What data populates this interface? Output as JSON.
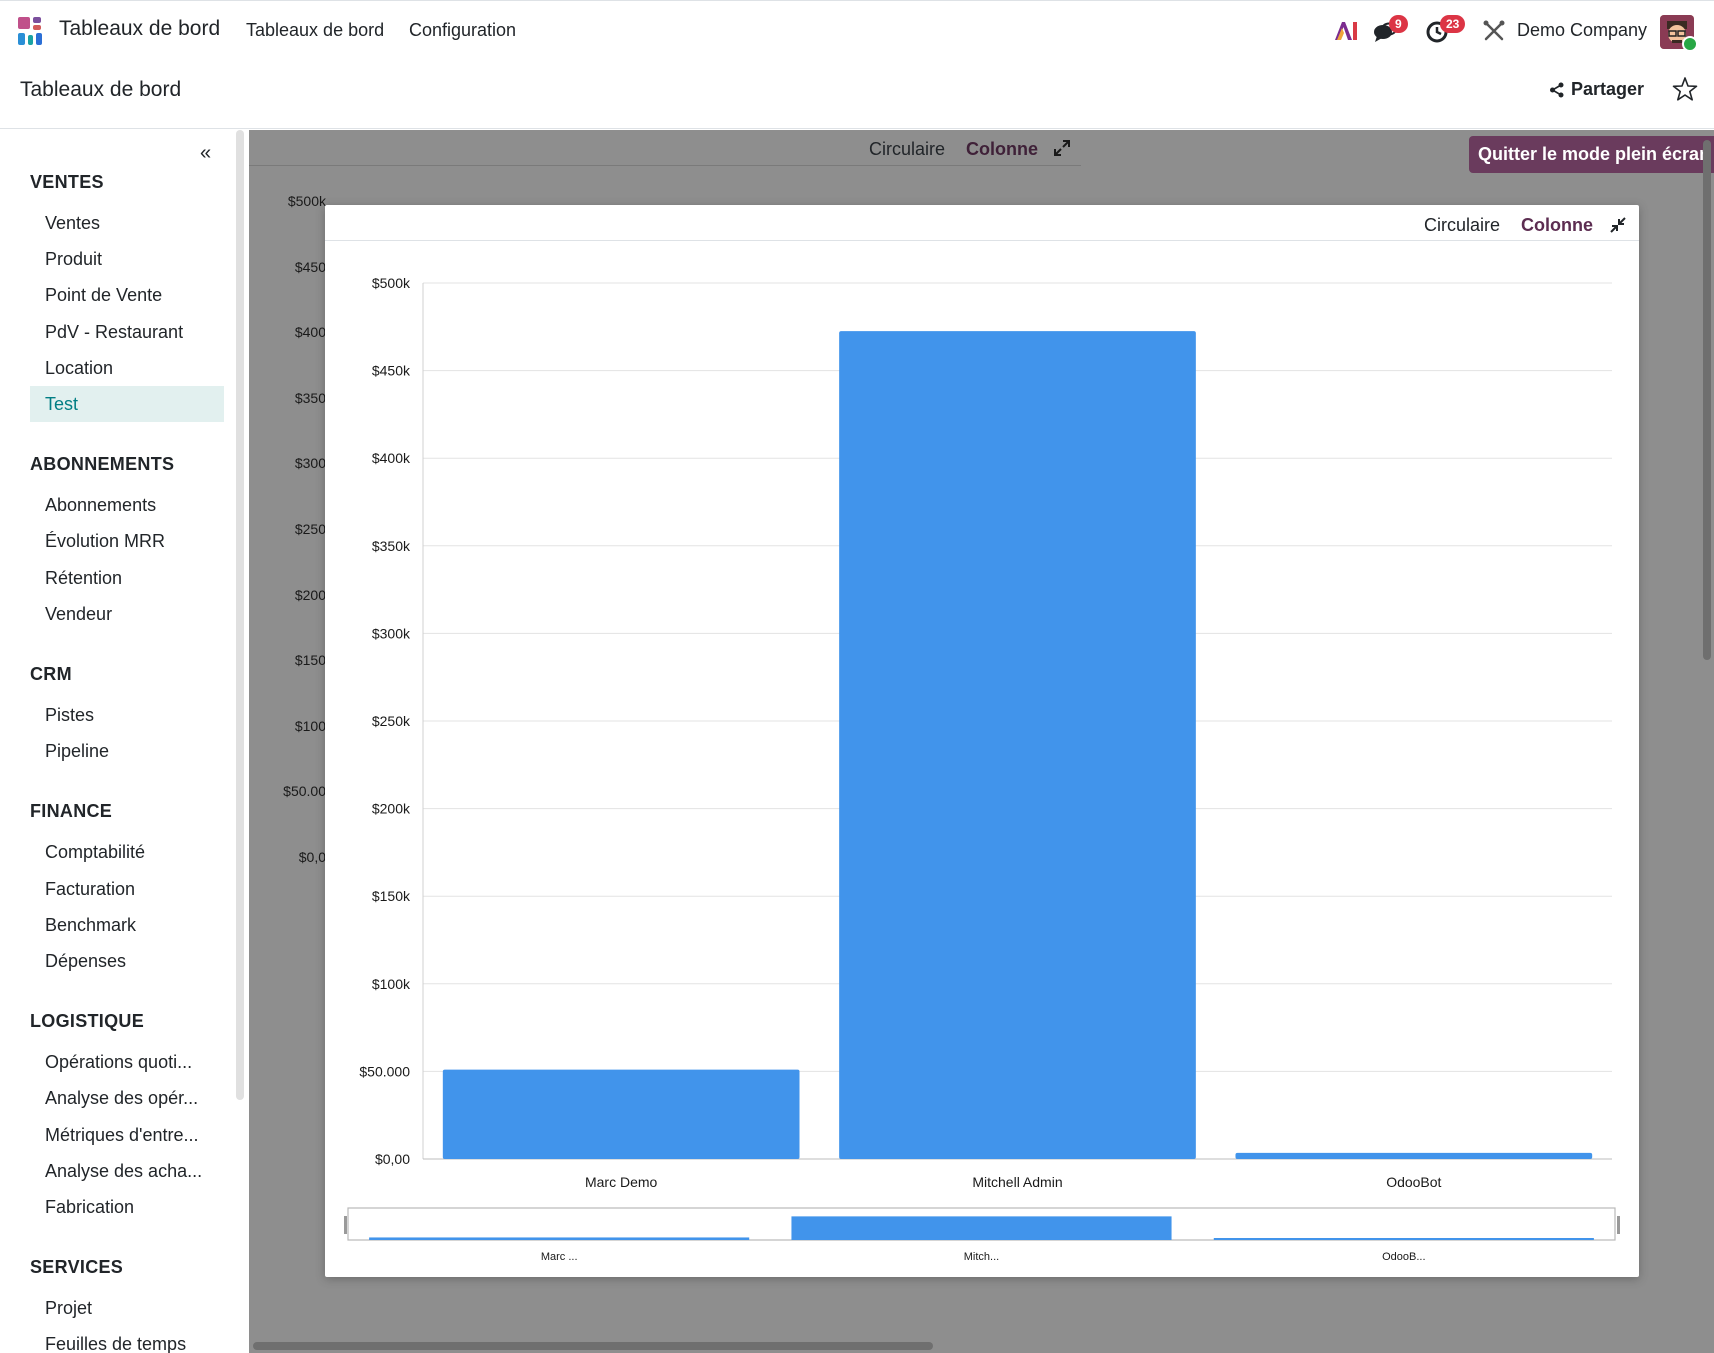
{
  "navbar": {
    "brand": "Tableaux de bord",
    "menu": [
      "Tableaux de bord",
      "Configuration"
    ],
    "messages_badge": "9",
    "activities_badge": "23",
    "company": "Demo Company"
  },
  "control_panel": {
    "title": "Tableaux de bord",
    "share_label": "Partager"
  },
  "sidebar": {
    "sections": [
      {
        "title": "VENTES",
        "items": [
          "Ventes",
          "Produit",
          "Point de Vente",
          "PdV - Restaurant",
          "Location",
          "Test"
        ]
      },
      {
        "title": "ABONNEMENTS",
        "items": [
          "Abonnements",
          "Évolution MRR",
          "Rétention",
          "Vendeur"
        ]
      },
      {
        "title": "CRM",
        "items": [
          "Pistes",
          "Pipeline"
        ]
      },
      {
        "title": "FINANCE",
        "items": [
          "Comptabilité",
          "Facturation",
          "Benchmark",
          "Dépenses"
        ]
      },
      {
        "title": "LOGISTIQUE",
        "items": [
          "Opérations quoti...",
          "Analyse des opér...",
          "Métriques d'entre...",
          "Analyse des acha...",
          "Fabrication"
        ]
      },
      {
        "title": "SERVICES",
        "items": [
          "Projet",
          "Feuilles de temps"
        ]
      }
    ],
    "active_item": "Test"
  },
  "background_panel": {
    "tabs": [
      "Circulaire",
      "Colonne"
    ],
    "axis_labels": [
      "$500k",
      "$450",
      "$400",
      "$350",
      "$300",
      "$250",
      "$200",
      "$150",
      "$100",
      "$50.00",
      "$0,0"
    ]
  },
  "exit_fullscreen_label": "Quitter le mode plein écran",
  "card": {
    "tabs": [
      "Circulaire",
      "Colonne"
    ],
    "active_tab": "Colonne"
  },
  "colors": {
    "bar": "#4194eb",
    "accent": "#5c2d51",
    "active_bg": "#e2f0ef",
    "active_text": "#017e84",
    "badge": "#dc3545"
  },
  "chart_data": {
    "type": "bar",
    "categories": [
      "Marc Demo",
      "Mitchell Admin",
      "OdooBot"
    ],
    "values": [
      51000,
      472500,
      3500
    ],
    "ylim": [
      0,
      500000
    ],
    "yticks": [
      0,
      50000,
      100000,
      150000,
      200000,
      250000,
      300000,
      350000,
      400000,
      450000,
      500000
    ],
    "ytick_labels": [
      "$0,00",
      "$50.000",
      "$100k",
      "$150k",
      "$200k",
      "$250k",
      "$300k",
      "$350k",
      "$400k",
      "$450k",
      "$500k"
    ],
    "grid": true,
    "legend": "none",
    "navigator_labels": [
      "Marc ...",
      "Mitch...",
      "OdooB..."
    ]
  }
}
